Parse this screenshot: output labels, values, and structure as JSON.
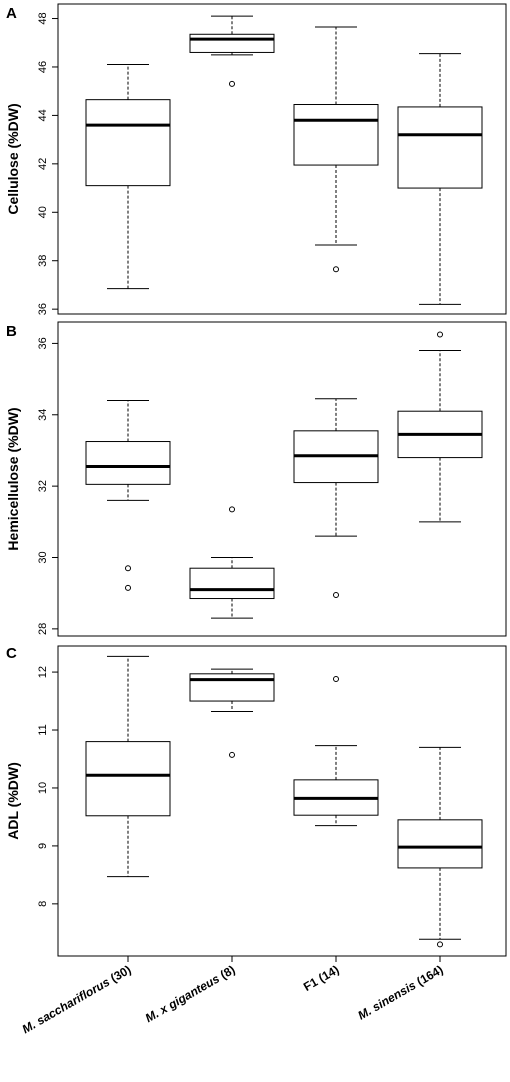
{
  "chart_data": [
    {
      "type": "box",
      "panel_letter": "A",
      "ylabel": "Cellulose (%DW)",
      "ylim": [
        35.8,
        48.6
      ],
      "yticks": [
        36,
        38,
        40,
        42,
        44,
        46,
        48
      ],
      "categories": [
        {
          "prefix": "M. sacchariflorus",
          "suffix": " (30)"
        },
        {
          "prefix": "M. x giganteus",
          "suffix": " (8)"
        },
        {
          "prefix": "",
          "suffix": "F1 (14)"
        },
        {
          "prefix": "M. sinensis",
          "suffix": " (164)"
        }
      ],
      "boxes": [
        {
          "whisker_low": 36.85,
          "q1": 41.1,
          "median": 43.6,
          "q3": 44.65,
          "whisker_high": 46.1,
          "outliers": []
        },
        {
          "whisker_low": 46.5,
          "q1": 46.6,
          "median": 47.15,
          "q3": 47.35,
          "whisker_high": 48.1,
          "outliers": [
            45.3
          ]
        },
        {
          "whisker_low": 38.65,
          "q1": 41.95,
          "median": 43.8,
          "q3": 44.45,
          "whisker_high": 47.65,
          "outliers": [
            37.65
          ]
        },
        {
          "whisker_low": 36.2,
          "q1": 41.0,
          "median": 43.2,
          "q3": 44.35,
          "whisker_high": 46.55,
          "outliers": []
        }
      ]
    },
    {
      "type": "box",
      "panel_letter": "B",
      "ylabel": "Hemicellulose (%DW)",
      "ylim": [
        27.8,
        36.6
      ],
      "yticks": [
        28,
        30,
        32,
        34,
        36
      ],
      "categories": [
        {
          "prefix": "M. sacchariflorus",
          "suffix": " (30)"
        },
        {
          "prefix": "M. x giganteus",
          "suffix": " (8)"
        },
        {
          "prefix": "",
          "suffix": "F1 (14)"
        },
        {
          "prefix": "M. sinensis",
          "suffix": " (164)"
        }
      ],
      "boxes": [
        {
          "whisker_low": 31.6,
          "q1": 32.05,
          "median": 32.55,
          "q3": 33.25,
          "whisker_high": 34.4,
          "outliers": [
            29.7,
            29.15
          ]
        },
        {
          "whisker_low": 28.3,
          "q1": 28.85,
          "median": 29.1,
          "q3": 29.7,
          "whisker_high": 30.0,
          "outliers": [
            31.35
          ]
        },
        {
          "whisker_low": 30.6,
          "q1": 32.1,
          "median": 32.85,
          "q3": 33.55,
          "whisker_high": 34.45,
          "outliers": [
            28.95
          ]
        },
        {
          "whisker_low": 31.0,
          "q1": 32.8,
          "median": 33.45,
          "q3": 34.1,
          "whisker_high": 35.8,
          "outliers": [
            36.25
          ]
        }
      ]
    },
    {
      "type": "box",
      "panel_letter": "C",
      "ylabel": "ADL (%DW)",
      "ylim": [
        7.1,
        12.45
      ],
      "yticks": [
        8,
        9,
        10,
        11,
        12
      ],
      "categories": [
        {
          "prefix": "M. sacchariflorus",
          "suffix": " (30)"
        },
        {
          "prefix": "M. x giganteus",
          "suffix": " (8)"
        },
        {
          "prefix": "",
          "suffix": "F1 (14)"
        },
        {
          "prefix": "M. sinensis",
          "suffix": " (164)"
        }
      ],
      "boxes": [
        {
          "whisker_low": 8.47,
          "q1": 9.52,
          "median": 10.22,
          "q3": 10.8,
          "whisker_high": 12.27,
          "outliers": []
        },
        {
          "whisker_low": 11.32,
          "q1": 11.5,
          "median": 11.87,
          "q3": 11.97,
          "whisker_high": 12.05,
          "outliers": [
            10.57
          ]
        },
        {
          "whisker_low": 9.35,
          "q1": 9.53,
          "median": 9.82,
          "q3": 10.14,
          "whisker_high": 10.73,
          "outliers": [
            11.88
          ]
        },
        {
          "whisker_low": 7.39,
          "q1": 8.62,
          "median": 8.98,
          "q3": 9.45,
          "whisker_high": 10.7,
          "outliers": [
            7.3
          ]
        }
      ]
    }
  ]
}
